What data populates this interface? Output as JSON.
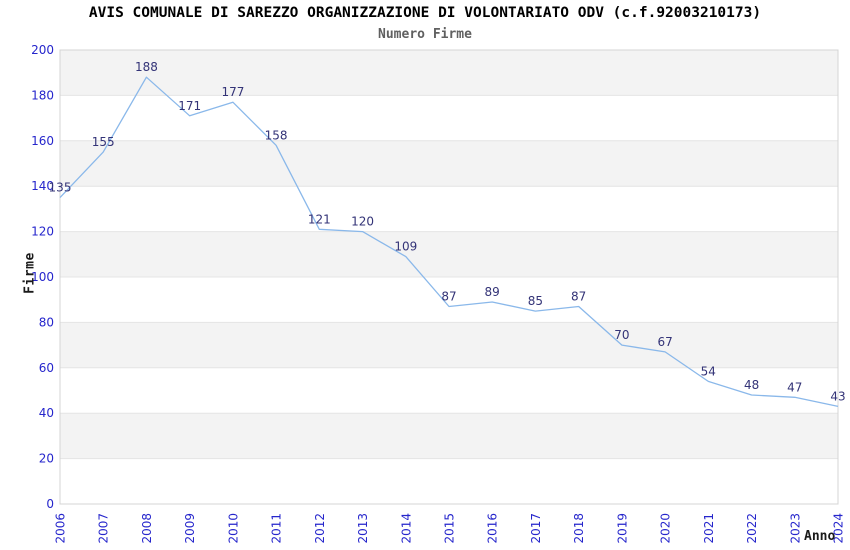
{
  "chart_data": {
    "type": "line",
    "title": "AVIS COMUNALE DI SAREZZO ORGANIZZAZIONE DI VOLONTARIATO ODV (c.f.92003210173)",
    "subtitle": "Numero Firme",
    "xlabel": "Anno",
    "ylabel": "Firme",
    "x": [
      "2006",
      "2007",
      "2008",
      "2009",
      "2010",
      "2011",
      "2012",
      "2013",
      "2014",
      "2015",
      "2016",
      "2017",
      "2018",
      "2019",
      "2020",
      "2021",
      "2022",
      "2023",
      "2024"
    ],
    "values": [
      135,
      155,
      188,
      171,
      177,
      158,
      121,
      120,
      109,
      87,
      89,
      85,
      87,
      70,
      67,
      54,
      48,
      47,
      43
    ],
    "ylim": [
      0,
      200
    ],
    "ytick_step": 20,
    "yticks": [
      0,
      20,
      40,
      60,
      80,
      100,
      120,
      140,
      160,
      180,
      200
    ],
    "grid": "horizontal-alternating-bands",
    "legend": "none",
    "markers": "none",
    "data_labels": "above-points",
    "x_tick_rotation": -90,
    "colors": {
      "line": "#8ab8ea",
      "tick_label": "#2626cc",
      "data_label": "#333377",
      "band": "#f3f3f3",
      "grid": "#e4e4e4",
      "border": "#d4d4d4",
      "title": "#000000",
      "subtitle": "#606060",
      "axis_title": "#1a1a1a",
      "background": "#ffffff"
    }
  }
}
